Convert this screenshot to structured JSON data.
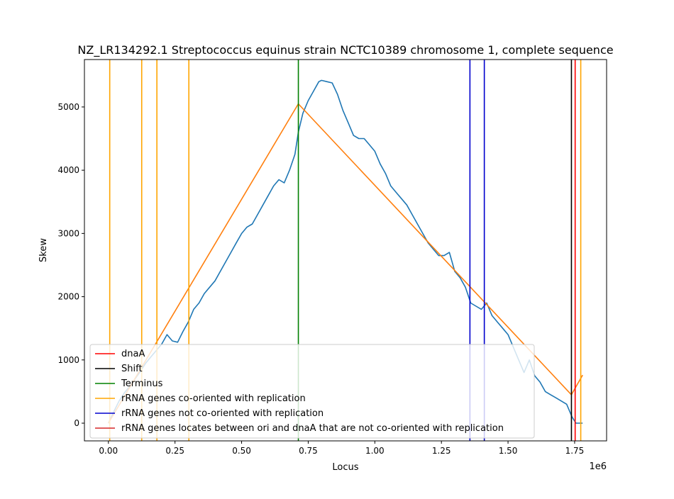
{
  "chart_data": {
    "type": "line",
    "title": "NZ_LR134292.1 Streptococcus equinus strain NCTC10389 chromosome 1, complete sequence",
    "xlabel": "Locus",
    "ylabel": "Skew",
    "x_offset_label": "1e6",
    "xlim": [
      -90000,
      1870000
    ],
    "ylim": [
      -280,
      5750
    ],
    "x_ticks": [
      0,
      250000,
      500000,
      750000,
      1000000,
      1250000,
      1500000,
      1750000
    ],
    "x_tick_labels": [
      "0.00",
      "0.25",
      "0.50",
      "0.75",
      "1.00",
      "1.25",
      "1.50",
      "1.75"
    ],
    "y_ticks": [
      0,
      1000,
      2000,
      3000,
      4000,
      5000
    ],
    "y_tick_labels": [
      "0",
      "1000",
      "2000",
      "3000",
      "4000",
      "5000"
    ],
    "grid": false,
    "legend_position": "lower-left",
    "series": [
      {
        "color": "#1f77b4",
        "x": [
          0,
          20000,
          40000,
          60000,
          80000,
          100000,
          120000,
          140000,
          160000,
          180000,
          200000,
          220000,
          240000,
          260000,
          280000,
          300000,
          320000,
          340000,
          360000,
          380000,
          400000,
          420000,
          440000,
          460000,
          480000,
          500000,
          520000,
          540000,
          560000,
          580000,
          600000,
          620000,
          640000,
          660000,
          680000,
          700000,
          713000,
          730000,
          750000,
          770000,
          790000,
          800000,
          820000,
          840000,
          860000,
          880000,
          900000,
          920000,
          940000,
          960000,
          980000,
          1000000,
          1020000,
          1040000,
          1060000,
          1080000,
          1100000,
          1120000,
          1140000,
          1160000,
          1180000,
          1200000,
          1220000,
          1240000,
          1260000,
          1280000,
          1300000,
          1320000,
          1340000,
          1360000,
          1380000,
          1400000,
          1420000,
          1440000,
          1460000,
          1480000,
          1500000,
          1520000,
          1540000,
          1560000,
          1580000,
          1600000,
          1620000,
          1640000,
          1660000,
          1680000,
          1700000,
          1720000,
          1740000,
          1755000,
          1765000,
          1780000
        ],
        "y": [
          0,
          180,
          350,
          480,
          580,
          700,
          820,
          950,
          1050,
          1150,
          1250,
          1400,
          1300,
          1280,
          1450,
          1600,
          1800,
          1900,
          2050,
          2150,
          2250,
          2400,
          2550,
          2700,
          2850,
          3000,
          3100,
          3150,
          3300,
          3450,
          3600,
          3750,
          3850,
          3800,
          4000,
          4250,
          4600,
          4900,
          5100,
          5250,
          5400,
          5420,
          5400,
          5380,
          5200,
          4950,
          4750,
          4550,
          4500,
          4500,
          4400,
          4300,
          4100,
          3950,
          3750,
          3650,
          3550,
          3450,
          3300,
          3150,
          3000,
          2850,
          2750,
          2650,
          2650,
          2700,
          2400,
          2300,
          2150,
          1900,
          1850,
          1800,
          1900,
          1700,
          1600,
          1500,
          1400,
          1200,
          1000,
          800,
          1000,
          750,
          650,
          500,
          450,
          400,
          350,
          300,
          100,
          0,
          0,
          0
        ]
      },
      {
        "color": "#ff7f0e",
        "x": [
          0,
          713000,
          1738000,
          1780000
        ],
        "y": [
          0,
          5050,
          450,
          760
        ]
      }
    ],
    "vertical_lines": [
      {
        "category": "rRNA genes co-oriented with replication",
        "color": "#ffa500",
        "x": 5000
      },
      {
        "category": "rRNA genes co-oriented with replication",
        "color": "#ffa500",
        "x": 125000
      },
      {
        "category": "rRNA genes co-oriented with replication",
        "color": "#ffa500",
        "x": 182000
      },
      {
        "category": "rRNA genes co-oriented with replication",
        "color": "#ffa500",
        "x": 302000
      },
      {
        "category": "Terminus",
        "color": "#008000",
        "x": 713000
      },
      {
        "category": "rRNA genes not co-oriented with replication",
        "color": "#0000cd",
        "x": 1357000
      },
      {
        "category": "rRNA genes not co-oriented with replication",
        "color": "#0000cd",
        "x": 1411000
      },
      {
        "category": "Shift",
        "color": "#000000",
        "x": 1738000
      },
      {
        "category": "dnaA",
        "color": "#ff0000",
        "x": 1752000
      },
      {
        "category": "rRNA genes co-oriented with replication",
        "color": "#ffa500",
        "x": 1773000
      }
    ],
    "legend": [
      {
        "label": "dnaA",
        "color": "#ff0000"
      },
      {
        "label": "Shift",
        "color": "#000000"
      },
      {
        "label": "Terminus",
        "color": "#008000"
      },
      {
        "label": "rRNA genes co-oriented with replication",
        "color": "#ffa500"
      },
      {
        "label": "rRNA genes not co-oriented with replication",
        "color": "#0000cd"
      },
      {
        "label": "rRNA genes locates between ori and dnaA that are not co-oriented with replication",
        "color": "#d62728"
      }
    ]
  }
}
